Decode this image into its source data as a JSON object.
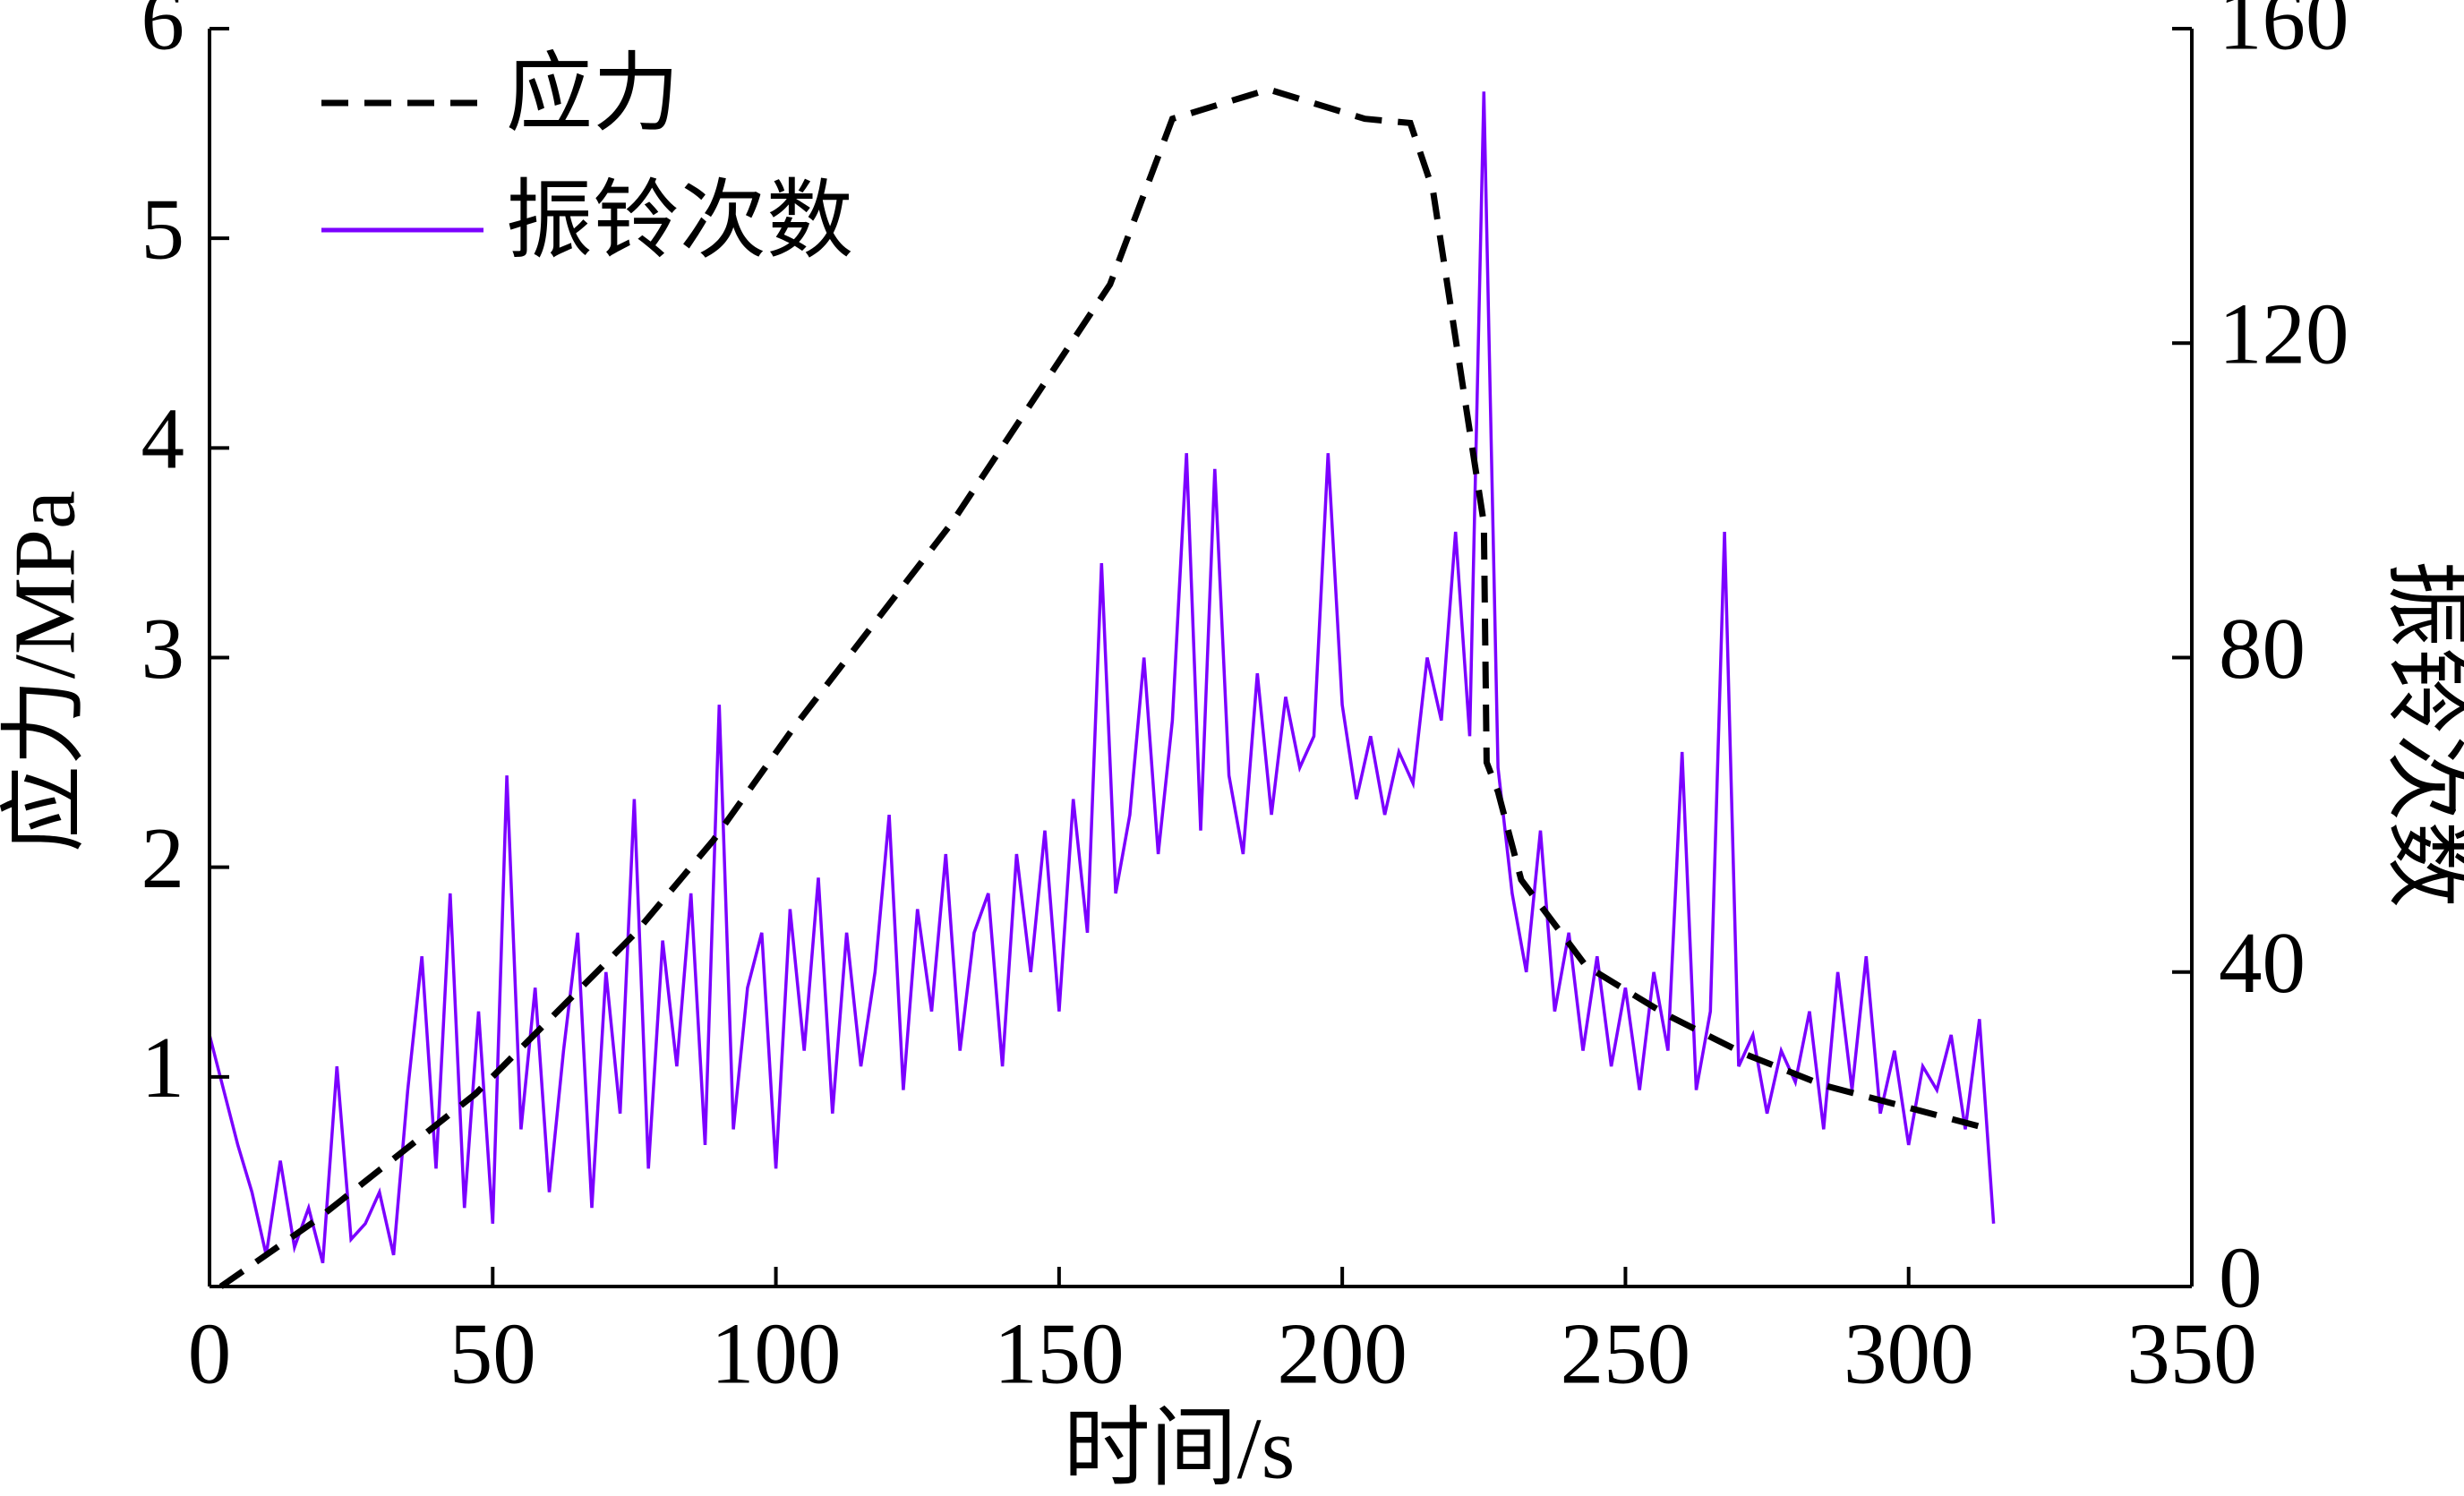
{
  "chart_data": {
    "type": "line",
    "xlabel": "时间/s",
    "ylabel": "应力/MPa",
    "y2label": "振铃次数",
    "xlim": [
      0,
      350
    ],
    "xticks": [
      0,
      50,
      100,
      150,
      200,
      250,
      300,
      350
    ],
    "ylim": [
      0,
      6
    ],
    "yticks": [
      1,
      2,
      3,
      4,
      5,
      6
    ],
    "y2lim": [
      0,
      160
    ],
    "y2ticks": [
      0,
      40,
      80,
      120,
      160
    ],
    "legend": "upper left",
    "series": [
      {
        "name": "应力",
        "color": "#000000",
        "dash": true,
        "axis": "y",
        "x": [
          2,
          19,
          47,
          75,
          89,
          103,
          131,
          159,
          170,
          187,
          204,
          212,
          216,
          222,
          225,
          225.5,
          227.5,
          231.6,
          243,
          257,
          271,
          285,
          313
        ],
        "values": [
          0,
          0.32,
          0.92,
          1.68,
          2.13,
          2.66,
          3.64,
          4.78,
          5.57,
          5.71,
          5.57,
          5.55,
          5.23,
          4.17,
          3.64,
          2.5,
          2.36,
          1.94,
          1.53,
          1.3,
          1.11,
          0.96,
          0.76
        ]
      },
      {
        "name": "振铃次数",
        "color": "#7b00ff",
        "dash": false,
        "axis": "y2",
        "x": [
          0,
          2.5,
          5,
          7.5,
          10,
          12.5,
          15,
          17.5,
          20,
          22.5,
          25,
          27.5,
          30,
          32.5,
          35,
          37.5,
          40,
          42.5,
          45,
          47.5,
          50,
          52.5,
          55,
          57.5,
          60,
          62.5,
          65,
          67.5,
          70,
          72.5,
          75,
          77.5,
          80,
          82.5,
          85,
          87.5,
          90,
          92.5,
          95,
          97.5,
          100,
          102.5,
          105,
          107.5,
          110,
          112.5,
          115,
          117.5,
          120,
          122.5,
          125,
          127.5,
          130,
          132.5,
          135,
          137.5,
          140,
          142.5,
          145,
          147.5,
          150,
          152.5,
          155,
          157.5,
          160,
          162.5,
          165,
          167.5,
          170,
          172.5,
          175,
          177.5,
          180,
          182.5,
          185,
          187.5,
          190,
          192.5,
          195,
          197.5,
          200,
          202.5,
          205,
          207.5,
          210,
          212.5,
          215,
          217.5,
          220,
          222.5,
          225,
          227.5,
          230,
          232.5,
          235,
          237.5,
          240,
          242.5,
          245,
          247.5,
          250,
          252.5,
          255,
          257.5,
          260,
          262.5,
          265,
          267.5,
          270,
          272.5,
          275,
          277.5,
          280,
          282.5,
          285,
          287.5,
          290,
          292.5,
          295,
          297.5,
          300,
          302.5,
          305,
          307.5,
          310,
          312.5,
          315
        ],
        "values": [
          32,
          25,
          18,
          12,
          4,
          16,
          5,
          10,
          3,
          28,
          6,
          8,
          12,
          4,
          25,
          42,
          15,
          50,
          10,
          35,
          8,
          65,
          20,
          38,
          12,
          30,
          45,
          10,
          40,
          22,
          62,
          15,
          44,
          28,
          50,
          18,
          74,
          20,
          38,
          45,
          15,
          48,
          30,
          52,
          22,
          45,
          28,
          40,
          60,
          25,
          48,
          35,
          55,
          30,
          45,
          50,
          28,
          55,
          40,
          58,
          35,
          62,
          45,
          92,
          50,
          60,
          80,
          55,
          72,
          106,
          58,
          104,
          65,
          55,
          78,
          60,
          75,
          66,
          70,
          106,
          74,
          62,
          70,
          60,
          68,
          64,
          80,
          72,
          96,
          70,
          152,
          66,
          50,
          40,
          58,
          35,
          45,
          30,
          42,
          28,
          38,
          25,
          40,
          30,
          68,
          25,
          35,
          96,
          28,
          32,
          22,
          30,
          26,
          35,
          20,
          40,
          25,
          42,
          22,
          30,
          18,
          28,
          25,
          32,
          20,
          34,
          8
        ]
      }
    ]
  }
}
